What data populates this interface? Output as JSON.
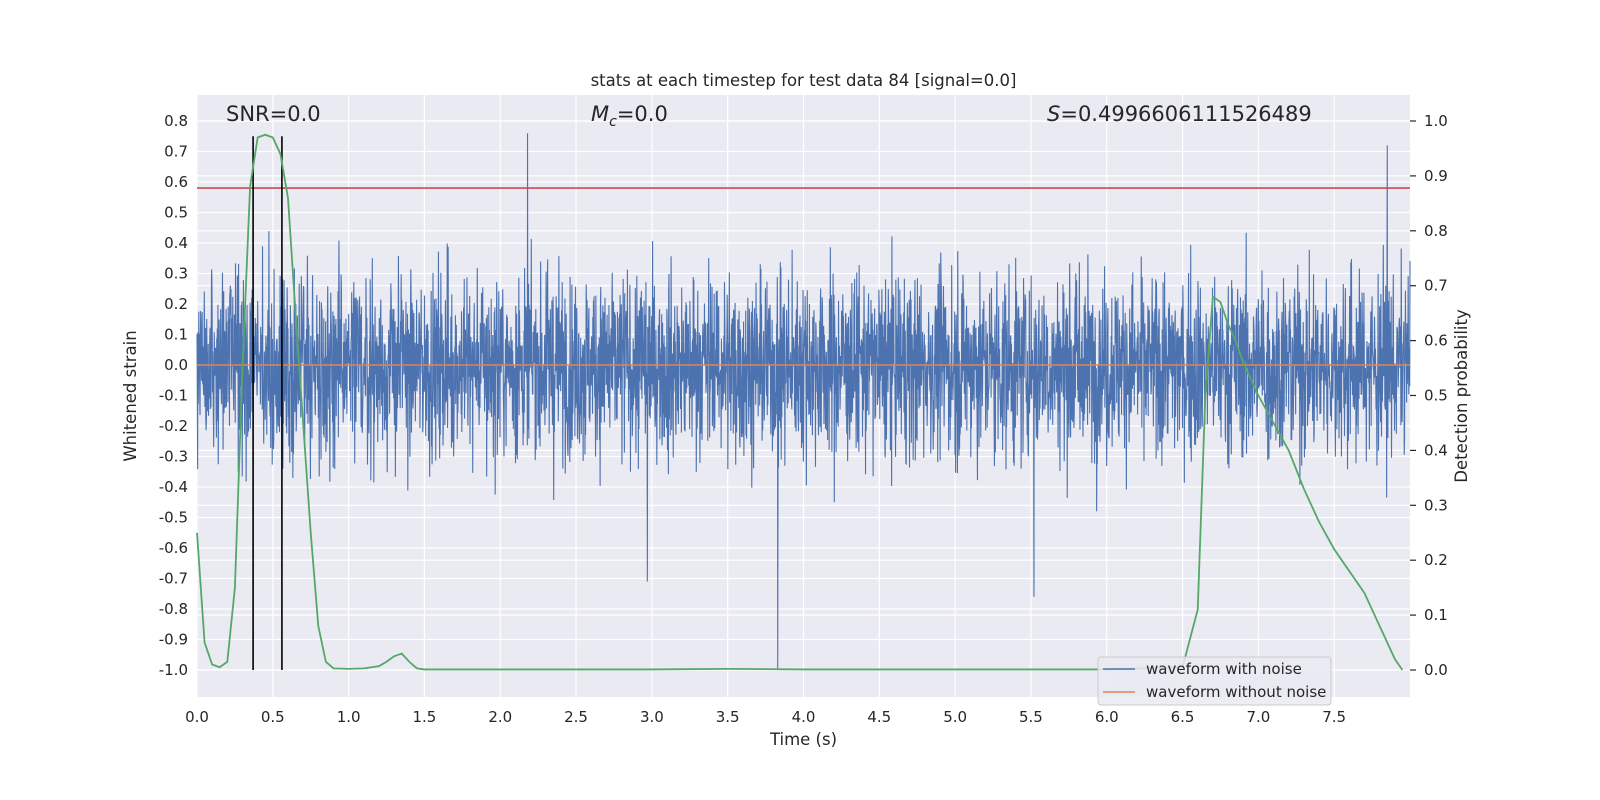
{
  "chart_data": {
    "type": "line",
    "title": "stats at each timestep for test data 84 [signal=0.0]",
    "xlabel": "Time (s)",
    "ylabel_left": "Whitened strain",
    "ylabel_right": "Detection probability",
    "xlim": [
      0.0,
      8.0
    ],
    "ylim_left": [
      -1.0,
      0.8
    ],
    "ylim_right": [
      0.0,
      1.0
    ],
    "x_ticks": [
      "0.0",
      "0.5",
      "1.0",
      "1.5",
      "2.0",
      "2.5",
      "3.0",
      "3.5",
      "4.0",
      "4.5",
      "5.0",
      "5.5",
      "6.0",
      "6.5",
      "7.0",
      "7.5"
    ],
    "y_left_ticks": [
      "0.8",
      "0.7",
      "0.6",
      "0.5",
      "0.4",
      "0.3",
      "0.2",
      "0.1",
      "0.0",
      "-0.1",
      "-0.2",
      "-0.3",
      "-0.4",
      "-0.5",
      "-0.6",
      "-0.7",
      "-0.8",
      "-0.9",
      "-1.0"
    ],
    "y_right_ticks": [
      "1.0",
      "0.9",
      "0.8",
      "0.7",
      "0.6",
      "0.5",
      "0.4",
      "0.3",
      "0.2",
      "0.1",
      "0.0"
    ],
    "grid": true,
    "legend_position": "lower-right",
    "annotations": {
      "snr": "SNR=0.0",
      "mc_symbol": "M",
      "mc_subscript": "c",
      "mc_value": "=0.0",
      "s_symbol": "S",
      "s_value": "=0.4996606111526489"
    },
    "series": [
      {
        "name": "waveform with noise",
        "axis": "left",
        "color": "#4c72b0",
        "band_typical": [
          -0.35,
          0.35
        ],
        "notable_spikes": [
          {
            "x": 2.18,
            "y": 0.76
          },
          {
            "x": 3.83,
            "y": -1.0
          },
          {
            "x": 5.52,
            "y": -0.76
          },
          {
            "x": 2.97,
            "y": -0.71
          },
          {
            "x": 7.85,
            "y": 0.72
          }
        ]
      },
      {
        "name": "waveform without noise",
        "axis": "left",
        "color": "#dd8452",
        "x": [
          0.0,
          8.0
        ],
        "y": [
          0.0,
          0.0
        ]
      },
      {
        "name": "detection probability",
        "axis": "right",
        "color": "#55a868",
        "x": [
          0.0,
          0.05,
          0.1,
          0.15,
          0.2,
          0.25,
          0.3,
          0.35,
          0.4,
          0.45,
          0.5,
          0.55,
          0.6,
          0.65,
          0.7,
          0.75,
          0.8,
          0.85,
          0.9,
          1.0,
          1.1,
          1.2,
          1.25,
          1.3,
          1.35,
          1.4,
          1.45,
          1.5,
          1.6,
          2.0,
          3.0,
          3.5,
          4.0,
          5.0,
          6.0,
          6.5,
          6.6,
          6.65,
          6.7,
          6.75,
          6.8,
          6.85,
          6.9,
          7.0,
          7.1,
          7.2,
          7.3,
          7.4,
          7.5,
          7.6,
          7.7,
          7.8,
          7.9,
          7.95
        ],
        "y": [
          0.25,
          0.05,
          0.01,
          0.005,
          0.015,
          0.15,
          0.55,
          0.88,
          0.97,
          0.975,
          0.97,
          0.94,
          0.86,
          0.65,
          0.45,
          0.25,
          0.08,
          0.015,
          0.003,
          0.002,
          0.003,
          0.007,
          0.015,
          0.025,
          0.03,
          0.015,
          0.003,
          0.001,
          0.001,
          0.001,
          0.001,
          0.002,
          0.001,
          0.001,
          0.001,
          0.005,
          0.11,
          0.5,
          0.68,
          0.67,
          0.63,
          0.6,
          0.56,
          0.5,
          0.45,
          0.4,
          0.33,
          0.27,
          0.22,
          0.18,
          0.14,
          0.08,
          0.02,
          0.0
        ]
      }
    ],
    "hlines": [
      {
        "name": "threshold",
        "axis": "left",
        "y": 0.58,
        "color": "#c44e52"
      }
    ],
    "vlines": [
      {
        "name": "marker",
        "x": 0.37,
        "color": "#000000"
      },
      {
        "name": "marker",
        "x": 0.56,
        "color": "#000000"
      }
    ]
  }
}
